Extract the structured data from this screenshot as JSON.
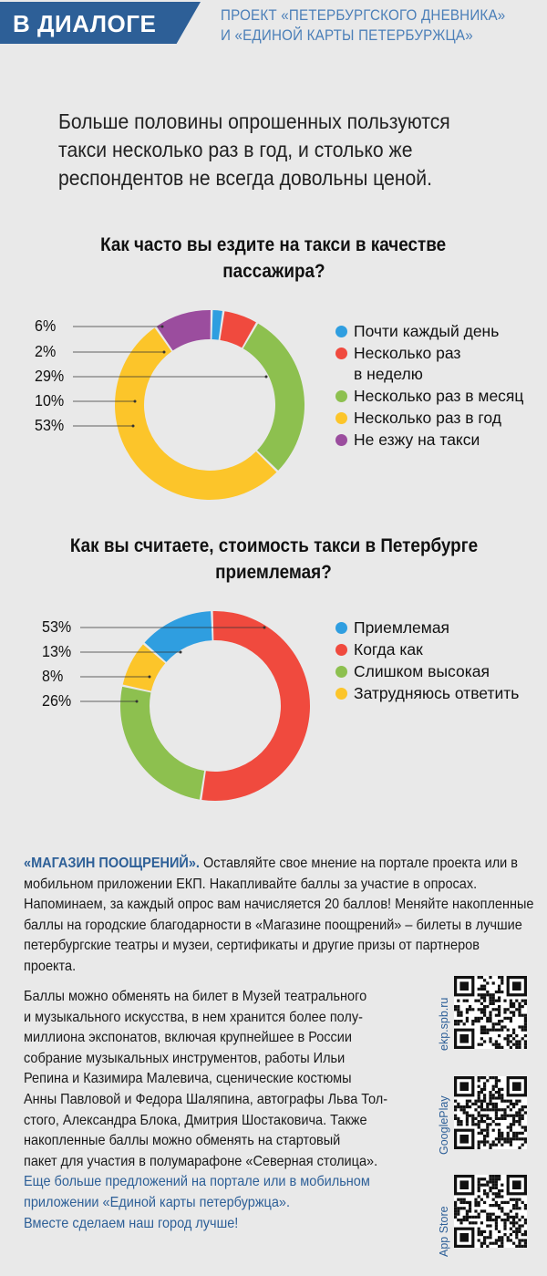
{
  "header": {
    "badge": "В ДИАЛОГЕ",
    "project_line1": "ПРОЕКТ «ПЕТЕРБУРГСКОГО ДНЕВНИКА»",
    "project_line2": "И «ЕДИНОЙ КАРТЫ ПЕТЕРБУРЖЦА»"
  },
  "intro": {
    "line1": "Больше половины опрошенных пользуются",
    "line2": "такси несколько раз в год, и столько же",
    "line3": "респондентов не всегда довольны ценой."
  },
  "colors": {
    "blue": "#2f9ee0",
    "red": "#f04a3e",
    "green": "#8dc04f",
    "yellow": "#fcc52a",
    "purple": "#9b4d9e",
    "brand": "#2d5f97"
  },
  "chart_data": [
    {
      "type": "pie",
      "variant": "donut",
      "title_line1": "Как часто вы ездите на такси в качестве",
      "title_line2": "пассажира?",
      "pct_labels": [
        "6%",
        "2%",
        "29%",
        "10%",
        "53%"
      ],
      "series": [
        {
          "name": "Почти каждый день",
          "value": 2,
          "color": "#2f9ee0"
        },
        {
          "name": "Несколько раз в неделю",
          "name_line1": "Несколько раз",
          "name_line2": "в неделю",
          "value": 6,
          "color": "#f04a3e"
        },
        {
          "name": "Несколько раз в месяц",
          "value": 29,
          "color": "#8dc04f"
        },
        {
          "name": "Несколько раз в год",
          "value": 53,
          "color": "#fcc52a"
        },
        {
          "name": "Не езжу на такси",
          "value": 10,
          "color": "#9b4d9e"
        }
      ],
      "slice_order": [
        "Несколько раз в месяц",
        "Несколько раз в год",
        "Не езжу на такси",
        "Почти каждый день",
        "Несколько раз в неделю"
      ]
    },
    {
      "type": "pie",
      "variant": "donut",
      "title_line1": "Как вы считаете, стоимость такси в Петербурге",
      "title_line2": "приемлемая?",
      "pct_labels": [
        "53%",
        "13%",
        "8%",
        "26%"
      ],
      "series": [
        {
          "name": "Приемлемая",
          "value": 13,
          "color": "#2f9ee0"
        },
        {
          "name": "Когда как",
          "value": 53,
          "color": "#f04a3e"
        },
        {
          "name": "Слишком высокая",
          "value": 26,
          "color": "#8dc04f"
        },
        {
          "name": "Затрудняюсь ответить",
          "value": 8,
          "color": "#fcc52a"
        }
      ],
      "slice_order": [
        "Когда как",
        "Слишком высокая",
        "Затрудняюсь ответить",
        "Приемлемая"
      ]
    }
  ],
  "footer": {
    "lead": "«МАГАЗИН ПООЩРЕНИЙ».",
    "p1_rest": " Оставляйте свое мнение на портале проекта или в мобильном приложении ЕКП. Накапливайте баллы за участие в опросах. Напоминаем, за каждый опрос вам начисляется 20 баллов! Меняйте накопленные баллы на городские благодарности в «Магазине поощрений» – билеты в лучшие петербургские театры и музеи, сертификаты и другие призы от партнеров проекта.",
    "lines": [
      "Баллы можно обменять на билет в Музей театрального",
      "и музыкального искусства, в нем хранится более полу-",
      "миллиона экспонатов, включая крупнейшее в России",
      "собрание музыкальных инструментов, работы Ильи",
      "Репина и Казимира Малевича, сценические костюмы",
      "Анны Павловой и Федора Шаляпина, автографы Льва Тол-",
      "стого, Александра Блока, Дмитрия Шостаковича. Также",
      "накопленные баллы можно обменять на стартовый",
      "пакет для участия в полумарафоне «Северная столица»."
    ],
    "blue_lines": [
      "Еще больше предложений на портале или в мобильном",
      "приложении «Единой карты петербуржца».",
      "Вместе сделаем наш город лучше!"
    ]
  },
  "qr_codes": [
    {
      "label": "ekp.spb.ru"
    },
    {
      "label": "GooglePlay"
    },
    {
      "label": "App Store"
    }
  ]
}
